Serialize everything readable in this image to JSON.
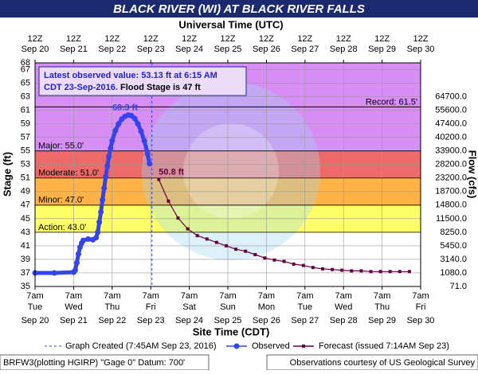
{
  "chart_data": {
    "type": "hydrograph",
    "title": "BLACK RIVER (WI) AT BLACK RIVER FALLS",
    "top_axis_title": "Universal Time (UTC)",
    "top_tick_labels": [
      "12Z",
      "12Z",
      "12Z",
      "12Z",
      "12Z",
      "12Z",
      "12Z",
      "12Z",
      "12Z",
      "12Z",
      "12Z"
    ],
    "top_tick_dates": [
      "Sep 20",
      "Sep 21",
      "Sep 22",
      "Sep 23",
      "Sep 24",
      "Sep 25",
      "Sep 26",
      "Sep 27",
      "Sep 28",
      "Sep 29",
      "Sep 30"
    ],
    "x_label": "Site Time (CDT)",
    "y_label": "Stage (ft)",
    "y2_label": "Flow (cfs)",
    "xlim": [
      "2016-09-20T07:00",
      "2016-09-30T07:00"
    ],
    "xticks": [
      {
        "value": "2016-09-20T07:00",
        "label": "7am"
      },
      {
        "value": "2016-09-21T07:00",
        "label": "7am"
      },
      {
        "value": "2016-09-22T07:00",
        "label": "7am"
      },
      {
        "value": "2016-09-23T07:00",
        "label": "7am"
      },
      {
        "value": "2016-09-24T07:00",
        "label": "7am"
      },
      {
        "value": "2016-09-25T07:00",
        "label": "7am"
      },
      {
        "value": "2016-09-26T07:00",
        "label": "7am"
      },
      {
        "value": "2016-09-27T07:00",
        "label": "7am"
      },
      {
        "value": "2016-09-28T07:00",
        "label": "7am"
      },
      {
        "value": "2016-09-29T07:00",
        "label": "7am"
      },
      {
        "value": "2016-09-30T07:00",
        "label": "7am"
      }
    ],
    "xtick_weekdays": [
      "Tue",
      "Wed",
      "Thu",
      "Fri",
      "Sat",
      "Sun",
      "Mon",
      "Tue",
      "Wed",
      "Thu",
      "Fri"
    ],
    "xtick_dates": [
      "Sep 20",
      "Sep 21",
      "Sep 22",
      "Sep 23",
      "Sep 24",
      "Sep 25",
      "Sep 26",
      "Sep 27",
      "Sep 28",
      "Sep 29",
      "Sep 30"
    ],
    "ylim": [
      35,
      68
    ],
    "yticks": [
      35,
      37,
      39,
      41,
      43,
      45,
      47,
      49,
      51,
      53,
      55,
      57,
      59,
      61,
      63,
      65,
      67,
      68
    ],
    "y2ticks": [
      {
        "value": 71,
        "label": "71.0"
      },
      {
        "value": 1080,
        "label": "1080.0"
      },
      {
        "value": 3140,
        "label": "3140.0"
      },
      {
        "value": 5450,
        "label": "5450.0"
      },
      {
        "value": 8250,
        "label": "8250.0"
      },
      {
        "value": 11500,
        "label": "11500.0"
      },
      {
        "value": 14800,
        "label": "14800.0"
      },
      {
        "value": 18700,
        "label": "18700.0"
      },
      {
        "value": 23200,
        "label": "23200.0"
      },
      {
        "value": 28200,
        "label": "28200.0"
      },
      {
        "value": 33900,
        "label": "33900.0"
      },
      {
        "value": 40200,
        "label": "40200.0"
      },
      {
        "value": 47400,
        "label": "47400.0"
      },
      {
        "value": 55600,
        "label": "55600.0"
      },
      {
        "value": 64700,
        "label": "64700.0"
      }
    ],
    "grid": true,
    "flood_stages": [
      {
        "value": 43,
        "label": "Action: 43.0'",
        "color": "#ffff66"
      },
      {
        "value": 47,
        "label": "Minor: 47.0'",
        "color": "#ffb347"
      },
      {
        "value": 51,
        "label": "Moderate: 51.0'",
        "color": "#ee6a6a"
      },
      {
        "value": 55,
        "label": "Major: 55.0'",
        "color": "#d88ef5"
      }
    ],
    "record": {
      "value": 61.5,
      "label": "Record: 61.5'"
    },
    "annotation": {
      "lines": [
        "Latest observed value: 53.13 ft at 6:15 AM",
        "CDT 23-Sep-2016."
      ],
      "flood_stage_text": "Flood Stage is 47 ft"
    },
    "graph_created": {
      "x": "2016-09-23T07:45",
      "label": "Graph Created (7:45AM Sep 23, 2016)"
    },
    "series": [
      {
        "name": "Observed",
        "color": "#3344ee",
        "style": "dots",
        "x": [
          "2016-09-20T07:00",
          "2016-09-20T19:00",
          "2016-09-21T07:00",
          "2016-09-21T08:00",
          "2016-09-21T09:00",
          "2016-09-21T10:00",
          "2016-09-21T11:00",
          "2016-09-21T12:00",
          "2016-09-21T13:00",
          "2016-09-21T16:00",
          "2016-09-21T19:00",
          "2016-09-21T21:00",
          "2016-09-21T22:00",
          "2016-09-21T23:00",
          "2016-09-22T00:00",
          "2016-09-22T01:00",
          "2016-09-22T02:00",
          "2016-09-22T03:00",
          "2016-09-22T04:00",
          "2016-09-22T05:00",
          "2016-09-22T06:00",
          "2016-09-22T07:00",
          "2016-09-22T09:00",
          "2016-09-22T11:00",
          "2016-09-22T13:00",
          "2016-09-22T15:00",
          "2016-09-22T17:00",
          "2016-09-22T19:00",
          "2016-09-22T21:00",
          "2016-09-22T23:00",
          "2016-09-23T01:00",
          "2016-09-23T03:00",
          "2016-09-23T05:00",
          "2016-09-23T06:15"
        ],
        "values": [
          37.0,
          37.0,
          37.1,
          37.4,
          38.5,
          39.8,
          40.8,
          41.4,
          41.8,
          42.0,
          41.9,
          42.2,
          43.0,
          44.5,
          46.0,
          47.8,
          49.5,
          51.2,
          52.8,
          54.2,
          55.4,
          56.5,
          58.0,
          59.0,
          59.7,
          60.1,
          60.3,
          60.2,
          59.8,
          59.0,
          57.9,
          56.5,
          54.6,
          53.13
        ],
        "value_labels": [
          null,
          null,
          null,
          null,
          null,
          null,
          null,
          null,
          null,
          null,
          null,
          null,
          null,
          null,
          null,
          null,
          null,
          null,
          null,
          null,
          null,
          null,
          null,
          null,
          null,
          null,
          "60.3 ft",
          null,
          null,
          null,
          null,
          null,
          null,
          null
        ]
      },
      {
        "name": "Forecast (issued 7:14AM Sep 23)",
        "color": "#660044",
        "style": "squares",
        "x": [
          "2016-09-23T12:00",
          "2016-09-23T18:00",
          "2016-09-24T00:00",
          "2016-09-24T06:00",
          "2016-09-24T12:00",
          "2016-09-24T18:00",
          "2016-09-25T00:00",
          "2016-09-25T06:00",
          "2016-09-25T12:00",
          "2016-09-25T18:00",
          "2016-09-26T00:00",
          "2016-09-26T06:00",
          "2016-09-26T12:00",
          "2016-09-26T18:00",
          "2016-09-27T00:00",
          "2016-09-27T06:00",
          "2016-09-27T12:00",
          "2016-09-27T18:00",
          "2016-09-28T00:00",
          "2016-09-28T06:00",
          "2016-09-28T12:00",
          "2016-09-28T18:00",
          "2016-09-29T00:00",
          "2016-09-29T06:00",
          "2016-09-29T12:00",
          "2016-09-29T18:00",
          "2016-09-30T00:00"
        ],
        "values": [
          50.8,
          47.6,
          45.1,
          43.5,
          42.5,
          42.0,
          41.5,
          41.0,
          40.5,
          40.2,
          39.7,
          39.2,
          38.9,
          38.7,
          38.3,
          38.1,
          37.8,
          37.6,
          37.5,
          37.4,
          37.3,
          37.3,
          37.2,
          37.2,
          37.2,
          37.2,
          37.2
        ],
        "value_labels": [
          "50.8 ft",
          null,
          null,
          null,
          null,
          null,
          null,
          null,
          null,
          null,
          null,
          null,
          null,
          null,
          null,
          null,
          null,
          null,
          null,
          null,
          null,
          null,
          null,
          null,
          null,
          null,
          null
        ]
      }
    ],
    "footer_left": "BRFW3(plotting HGIRP) \"Gage 0\" Datum: 700'",
    "footer_right": "Observations courtesy of US Geological Survey"
  }
}
